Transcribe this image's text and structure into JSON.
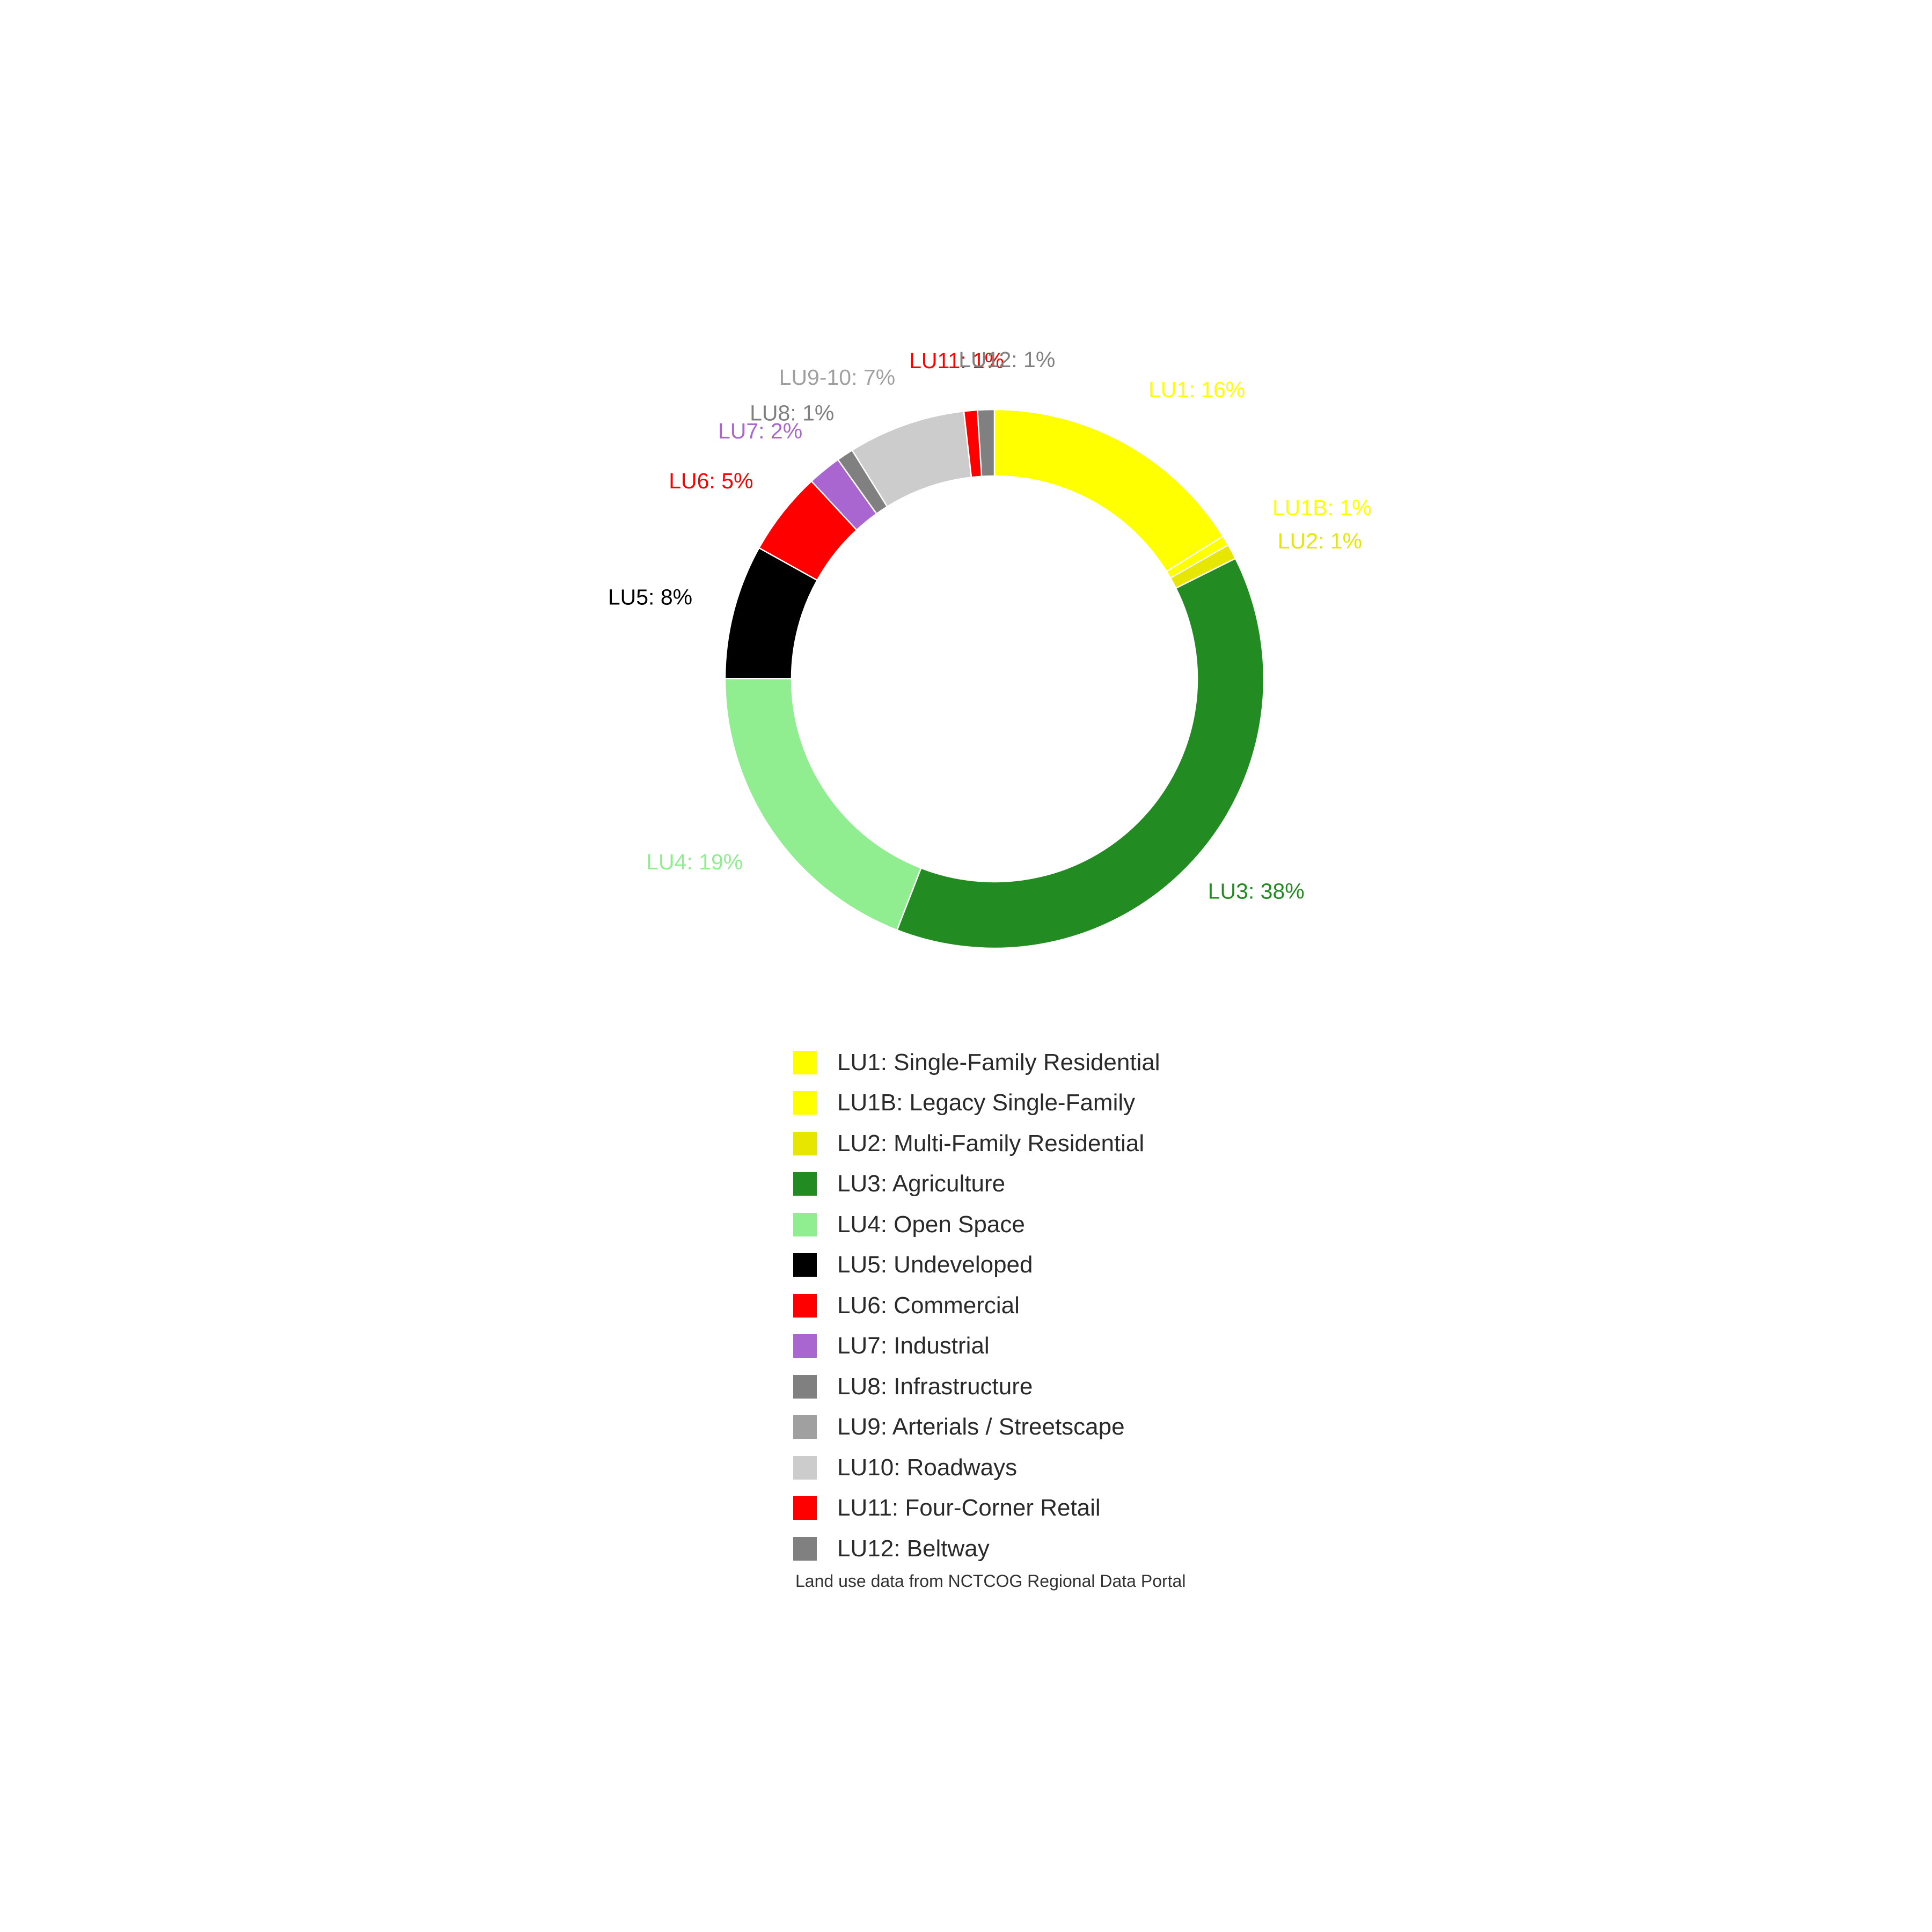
{
  "chart_data": {
    "type": "pie",
    "variant": "donut",
    "title": "",
    "slices": [
      {
        "key": "lu1",
        "label": "LU1: 16%",
        "value": 16.0,
        "color": "#ffff00",
        "label_color": "#ffff00"
      },
      {
        "key": "lu1b",
        "label": "LU1B: 1%",
        "value": 0.6,
        "color": "#ffff00",
        "label_color": "#ffff00"
      },
      {
        "key": "lu2",
        "label": "LU2: 1%",
        "value": 0.9,
        "color": "#e6e600",
        "label_color": "#e6e600"
      },
      {
        "key": "lu3",
        "label": "LU3: 38%",
        "value": 38.0,
        "color": "#228b22",
        "label_color": "#228b22"
      },
      {
        "key": "lu4",
        "label": "LU4: 19%",
        "value": 19.0,
        "color": "#90ee90",
        "label_color": "#90ee90"
      },
      {
        "key": "lu5",
        "label": "LU5: 8%",
        "value": 8.0,
        "color": "#000000",
        "label_color": "#000000"
      },
      {
        "key": "lu6",
        "label": "LU6: 5%",
        "value": 5.0,
        "color": "#ff0000",
        "label_color": "#ff0000"
      },
      {
        "key": "lu7",
        "label": "LU7: 2%",
        "value": 2.0,
        "color": "#a966d1",
        "label_color": "#a966d1"
      },
      {
        "key": "lu8",
        "label": "LU8: 1%",
        "value": 1.0,
        "color": "#808080",
        "label_color": "#808080"
      },
      {
        "key": "lu9_10",
        "label": "LU9-10: 7%",
        "value": 7.0,
        "color": "#cccccc",
        "label_color": "#a0a0a0"
      },
      {
        "key": "lu11",
        "label": "LU11: 1%",
        "value": 0.8,
        "color": "#ff0000",
        "label_color": "#ff0000"
      },
      {
        "key": "lu12",
        "label": "LU12: 1%",
        "value": 1.0,
        "color": "#808080",
        "label_color": "#808080"
      }
    ],
    "legend": {
      "placement": "bottom",
      "items": [
        {
          "label": "LU1: Single-Family Residential",
          "color": "#ffff00"
        },
        {
          "label": "LU1B: Legacy Single-Family",
          "color": "#ffff00"
        },
        {
          "label": "LU2: Multi-Family Residential",
          "color": "#e6e600"
        },
        {
          "label": "LU3: Agriculture",
          "color": "#228b22"
        },
        {
          "label": "LU4: Open Space",
          "color": "#90ee90"
        },
        {
          "label": "LU5: Undeveloped",
          "color": "#000000"
        },
        {
          "label": "LU6: Commercial",
          "color": "#ff0000"
        },
        {
          "label": "LU7: Industrial",
          "color": "#a966d1"
        },
        {
          "label": "LU8: Infrastructure",
          "color": "#808080"
        },
        {
          "label": "LU9: Arterials / Streetscape",
          "color": "#a0a0a0"
        },
        {
          "label": "LU10: Roadways",
          "color": "#cccccc"
        },
        {
          "label": "LU11: Four-Corner Retail",
          "color": "#ff0000"
        },
        {
          "label": "LU12: Beltway",
          "color": "#808080"
        }
      ]
    },
    "note": "Land use data from NCTCOG Regional Data Portal"
  }
}
